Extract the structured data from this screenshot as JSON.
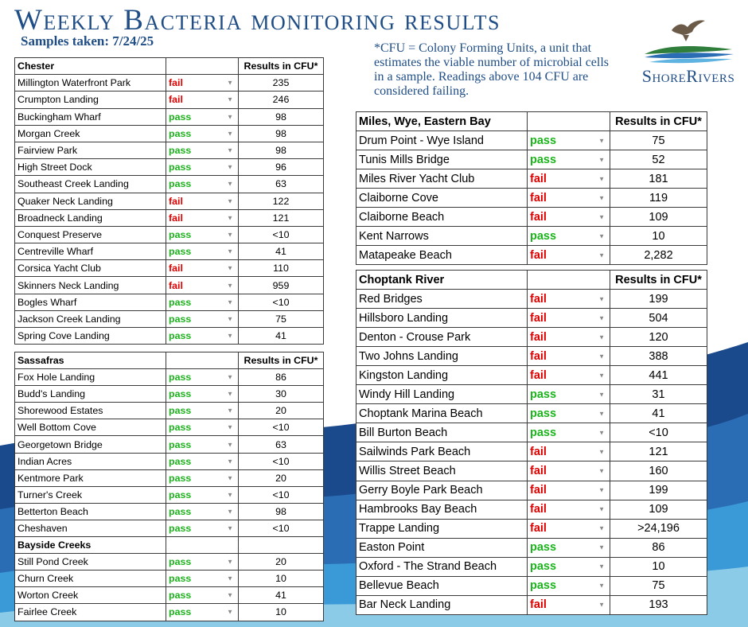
{
  "header": {
    "title": "Weekly Bacteria monitoring results",
    "samples_taken": "Samples taken: 7/24/25",
    "cfu_note": "*CFU = Colony Forming Units, a unit that estimates the viable number of microbial  cells in a sample. Readings above 104 CFU  are considered failing.",
    "logo_text": "ShoreRivers"
  },
  "colors": {
    "pass": "#1db31d",
    "fail": "#e00000",
    "brand": "#1f4d86",
    "wave_dark": "#1a4a8c",
    "wave_light": "#2f8fd0"
  },
  "results_header": "Results in CFU*",
  "chester": {
    "title": "Chester",
    "rows": [
      {
        "site": "Millington Waterfront Park",
        "status": "fail",
        "cfu": "235"
      },
      {
        "site": "Crumpton Landing",
        "status": "fail",
        "cfu": "246"
      },
      {
        "site": "Buckingham Wharf",
        "status": "pass",
        "cfu": "98"
      },
      {
        "site": "Morgan Creek",
        "status": "pass",
        "cfu": "98"
      },
      {
        "site": "Fairview Park",
        "status": "pass",
        "cfu": "98"
      },
      {
        "site": "High Street Dock",
        "status": "pass",
        "cfu": "96"
      },
      {
        "site": "Southeast Creek Landing",
        "status": "pass",
        "cfu": "63"
      },
      {
        "site": "Quaker Neck Landing",
        "status": "fail",
        "cfu": "122"
      },
      {
        "site": "Broadneck Landing",
        "status": "fail",
        "cfu": "121"
      },
      {
        "site": "Conquest Preserve",
        "status": "pass",
        "cfu": "<10"
      },
      {
        "site": "Centreville Wharf",
        "status": "pass",
        "cfu": "41"
      },
      {
        "site": "Corsica Yacht Club",
        "status": "fail",
        "cfu": "110"
      },
      {
        "site": "Skinners Neck Landing",
        "status": "fail",
        "cfu": "959"
      },
      {
        "site": "Bogles Wharf",
        "status": "pass",
        "cfu": "<10"
      },
      {
        "site": "Jackson Creek Landing",
        "status": "pass",
        "cfu": "75"
      },
      {
        "site": "Spring Cove Landing",
        "status": "pass",
        "cfu": "41"
      }
    ]
  },
  "sassafras": {
    "title": "Sassafras",
    "rows": [
      {
        "site": "Fox Hole Landing",
        "status": "pass",
        "cfu": "86"
      },
      {
        "site": "Budd's Landing",
        "status": "pass",
        "cfu": "30"
      },
      {
        "site": "Shorewood Estates",
        "status": "pass",
        "cfu": "20"
      },
      {
        "site": "Well Bottom Cove",
        "status": "pass",
        "cfu": "<10"
      },
      {
        "site": "Georgetown Bridge",
        "status": "pass",
        "cfu": "63"
      },
      {
        "site": "Indian Acres",
        "status": "pass",
        "cfu": "<10"
      },
      {
        "site": "Kentmore Park",
        "status": "pass",
        "cfu": "20"
      },
      {
        "site": "Turner's Creek",
        "status": "pass",
        "cfu": "<10"
      },
      {
        "site": "Betterton Beach",
        "status": "pass",
        "cfu": "98"
      },
      {
        "site": "Cheshaven",
        "status": "pass",
        "cfu": "<10"
      }
    ]
  },
  "bayside": {
    "title": "Bayside Creeks",
    "rows": [
      {
        "site": "Still Pond Creek",
        "status": "pass",
        "cfu": "20"
      },
      {
        "site": "Churn Creek",
        "status": "pass",
        "cfu": "10"
      },
      {
        "site": "Worton Creek",
        "status": "pass",
        "cfu": "41"
      },
      {
        "site": "Fairlee Creek",
        "status": "pass",
        "cfu": "10"
      }
    ]
  },
  "miles": {
    "title": "Miles, Wye, Eastern Bay",
    "rows": [
      {
        "site": "Drum Point - Wye Island",
        "status": "pass",
        "cfu": "75"
      },
      {
        "site": "Tunis Mills Bridge",
        "status": "pass",
        "cfu": "52"
      },
      {
        "site": "Miles River Yacht Club",
        "status": "fail",
        "cfu": "181"
      },
      {
        "site": "Claiborne Cove",
        "status": "fail",
        "cfu": "119"
      },
      {
        "site": "Claiborne Beach",
        "status": "fail",
        "cfu": "109"
      },
      {
        "site": "Kent Narrows",
        "status": "pass",
        "cfu": "10"
      },
      {
        "site": "Matapeake Beach",
        "status": "fail",
        "cfu": "2,282"
      }
    ]
  },
  "choptank": {
    "title": "Choptank River",
    "rows": [
      {
        "site": "Red Bridges",
        "status": "fail",
        "cfu": "199"
      },
      {
        "site": "Hillsboro Landing",
        "status": "fail",
        "cfu": "504"
      },
      {
        "site": "Denton - Crouse Park",
        "status": "fail",
        "cfu": "120"
      },
      {
        "site": "Two Johns Landing",
        "status": "fail",
        "cfu": "388"
      },
      {
        "site": "Kingston Landing",
        "status": "fail",
        "cfu": "441"
      },
      {
        "site": "Windy Hill Landing",
        "status": "pass",
        "cfu": "31"
      },
      {
        "site": "Choptank Marina Beach",
        "status": "pass",
        "cfu": "41"
      },
      {
        "site": "Bill Burton Beach",
        "status": "pass",
        "cfu": "<10"
      },
      {
        "site": "Sailwinds Park Beach",
        "status": "fail",
        "cfu": "121"
      },
      {
        "site": "Willis Street Beach",
        "status": "fail",
        "cfu": "160"
      },
      {
        "site": "Gerry Boyle Park Beach",
        "status": "fail",
        "cfu": "199"
      },
      {
        "site": "Hambrooks Bay Beach",
        "status": "fail",
        "cfu": "109"
      },
      {
        "site": "Trappe Landing",
        "status": "fail",
        "cfu": ">24,196"
      },
      {
        "site": "Easton Point",
        "status": "pass",
        "cfu": "86"
      },
      {
        "site": "Oxford - The Strand Beach",
        "status": "pass",
        "cfu": "10"
      },
      {
        "site": "Bellevue Beach",
        "status": "pass",
        "cfu": "75"
      },
      {
        "site": "Bar Neck Landing",
        "status": "fail",
        "cfu": "193"
      }
    ]
  }
}
